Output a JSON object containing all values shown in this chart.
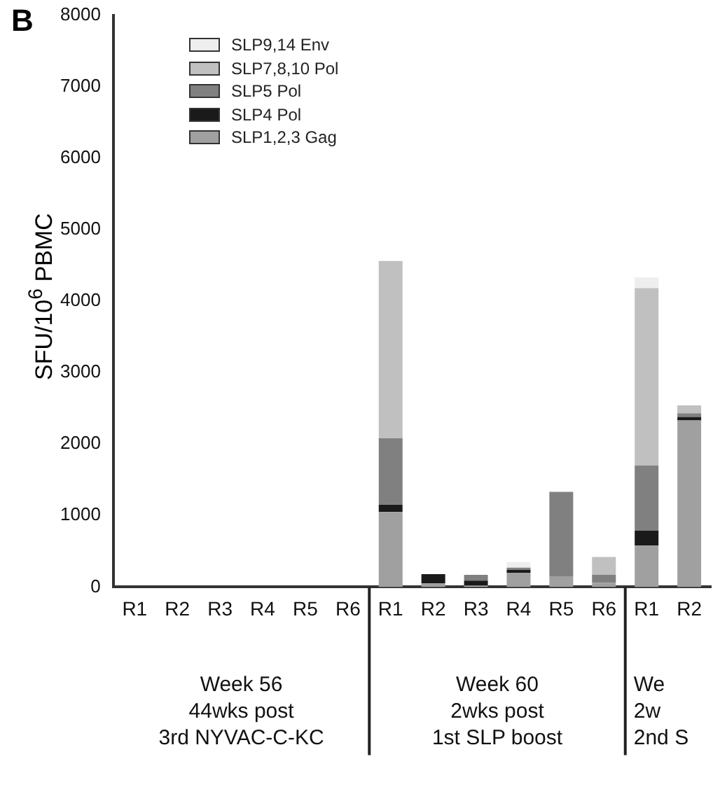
{
  "chart_data": {
    "type": "bar",
    "title": "B",
    "ylabel": "SFU/10$^{6}$ PBMC",
    "categories": [
      "R1",
      "R2",
      "R3",
      "R4",
      "R5",
      "R6",
      "R1",
      "R2",
      "R3",
      "R4",
      "R5",
      "R6",
      "R1",
      "R2"
    ],
    "stacked": true,
    "legend": "top left",
    "grid": false,
    "ylim": [
      0,
      8000
    ],
    "yticks": [
      0,
      1000,
      2000,
      3000,
      4000,
      5000,
      6000,
      7000,
      8000
    ],
    "series": [
      {
        "name": "SLP1,2,3 Gag",
        "color": "#a0a0a0",
        "values": [
          0,
          0,
          0,
          0,
          0,
          0,
          1050,
          50,
          20,
          200,
          150,
          60,
          580,
          2330
        ]
      },
      {
        "name": "SLP4 Pol",
        "color": "#1a1a1a",
        "values": [
          0,
          0,
          0,
          0,
          0,
          0,
          100,
          130,
          70,
          40,
          0,
          0,
          210,
          50
        ]
      },
      {
        "name": "SLP5 Pol",
        "color": "#808080",
        "values": [
          0,
          0,
          0,
          0,
          0,
          0,
          930,
          0,
          80,
          30,
          1180,
          110,
          910,
          50
        ]
      },
      {
        "name": "SLP7,8,10 Pol",
        "color": "#c0c0c0",
        "values": [
          0,
          0,
          0,
          0,
          0,
          0,
          2480,
          0,
          0,
          0,
          0,
          250,
          2480,
          110
        ]
      },
      {
        "name": "SLP9,14 Env",
        "color": "#eeeeee",
        "values": [
          0,
          0,
          0,
          0,
          0,
          0,
          0,
          0,
          0,
          80,
          0,
          0,
          150,
          0
        ]
      }
    ],
    "annotations": [
      "Week 56\n44wks post\n3rd NYVAC-C-KC",
      "Week 60\n2wks post\n1st SLP boost",
      "We\n2w\n2nd S"
    ]
  }
}
